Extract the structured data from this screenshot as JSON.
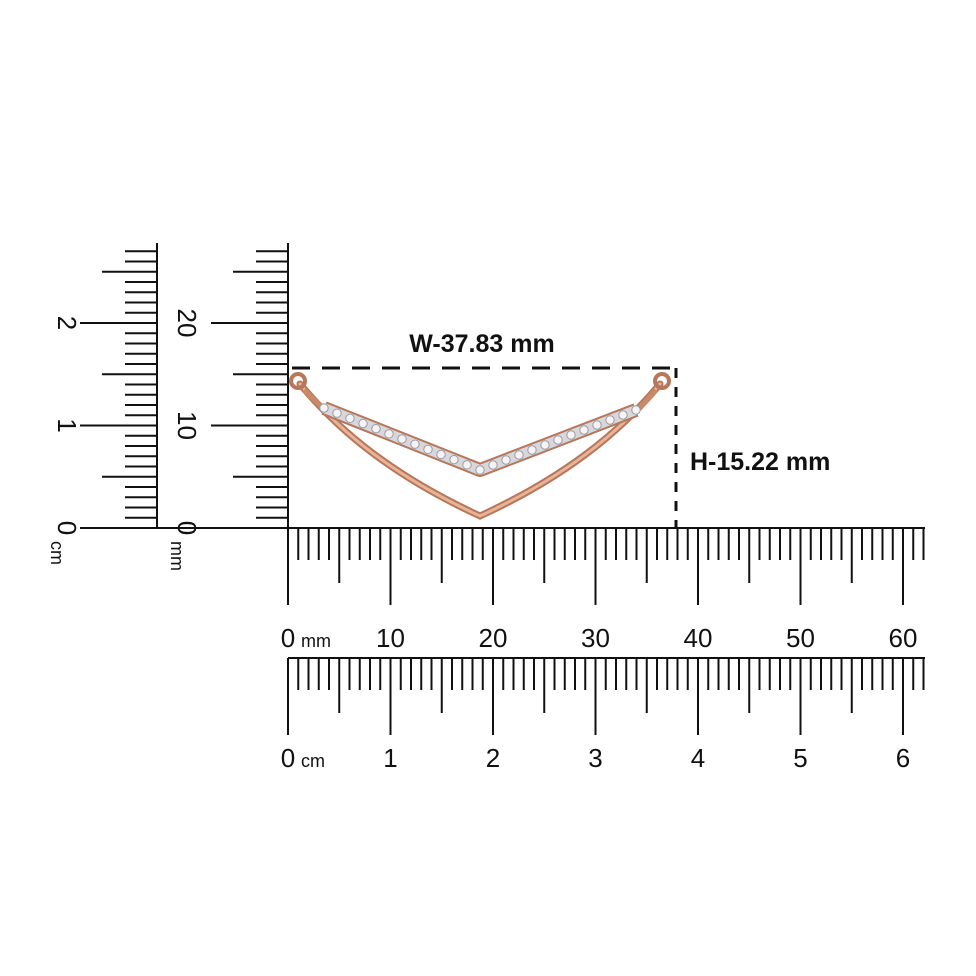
{
  "measurements": {
    "width": "W-37.83 mm",
    "height": "H-15.22 mm"
  },
  "rulers": {
    "horizontal_mm": {
      "unit": "mm",
      "labels": [
        "0",
        "10",
        "20",
        "30",
        "40",
        "50",
        "60"
      ]
    },
    "horizontal_cm": {
      "unit": "cm",
      "labels": [
        "0",
        "1",
        "2",
        "3",
        "4",
        "5",
        "6"
      ]
    },
    "vertical_mm": {
      "unit": "mm",
      "labels": [
        "0",
        "10",
        "20"
      ]
    },
    "vertical_cm": {
      "unit": "cm",
      "labels": [
        "0",
        "1",
        "2"
      ]
    }
  }
}
